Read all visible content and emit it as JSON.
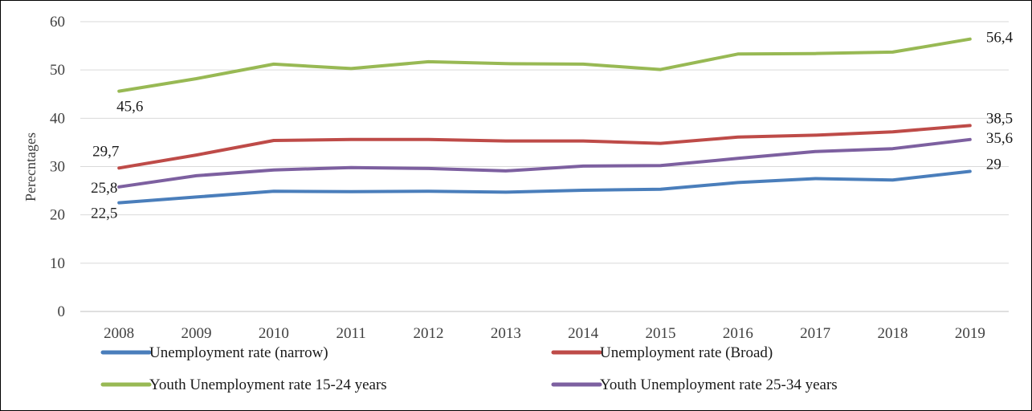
{
  "chart_data": {
    "type": "line",
    "title": "",
    "xlabel": "",
    "ylabel": "Perecntages",
    "ylim": [
      0,
      60
    ],
    "yticks": [
      "0",
      "10",
      "20",
      "30",
      "40",
      "50",
      "60"
    ],
    "grid": true,
    "legend_position": "bottom",
    "categories": [
      "2008",
      "2009",
      "2010",
      "2011",
      "2012",
      "2013",
      "2014",
      "2015",
      "2016",
      "2017",
      "2018",
      "2019"
    ],
    "series": [
      {
        "name": "Unemployment rate (narrow)",
        "color": "#4a7ebb",
        "values": [
          22.5,
          23.7,
          24.9,
          24.8,
          24.9,
          24.7,
          25.1,
          25.3,
          26.7,
          27.5,
          27.2,
          29.0
        ],
        "labels": [
          {
            "index": 0,
            "text": "22,5"
          },
          {
            "index": 11,
            "text": "29"
          }
        ]
      },
      {
        "name": "Unemployment rate (Broad)",
        "color": "#be4b48",
        "values": [
          29.7,
          32.4,
          35.4,
          35.6,
          35.6,
          35.3,
          35.3,
          34.8,
          36.1,
          36.5,
          37.2,
          38.5
        ],
        "labels": [
          {
            "index": 0,
            "text": "29,7"
          },
          {
            "index": 11,
            "text": "38,5"
          }
        ]
      },
      {
        "name": "Youth Unemployment rate 15-24 years",
        "color": "#98b954",
        "values": [
          45.6,
          48.2,
          51.2,
          50.3,
          51.7,
          51.3,
          51.2,
          50.1,
          53.3,
          53.4,
          53.7,
          56.4
        ],
        "labels": [
          {
            "index": 0,
            "text": "45,6"
          },
          {
            "index": 11,
            "text": "56,4"
          }
        ]
      },
      {
        "name": "Youth Unemployment rate 25-34 years",
        "color": "#7d60a0",
        "values": [
          25.8,
          28.1,
          29.3,
          29.8,
          29.6,
          29.1,
          30.1,
          30.2,
          31.7,
          33.1,
          33.7,
          35.6
        ],
        "labels": [
          {
            "index": 0,
            "text": "25,8"
          },
          {
            "index": 11,
            "text": "35,6"
          }
        ]
      }
    ]
  }
}
